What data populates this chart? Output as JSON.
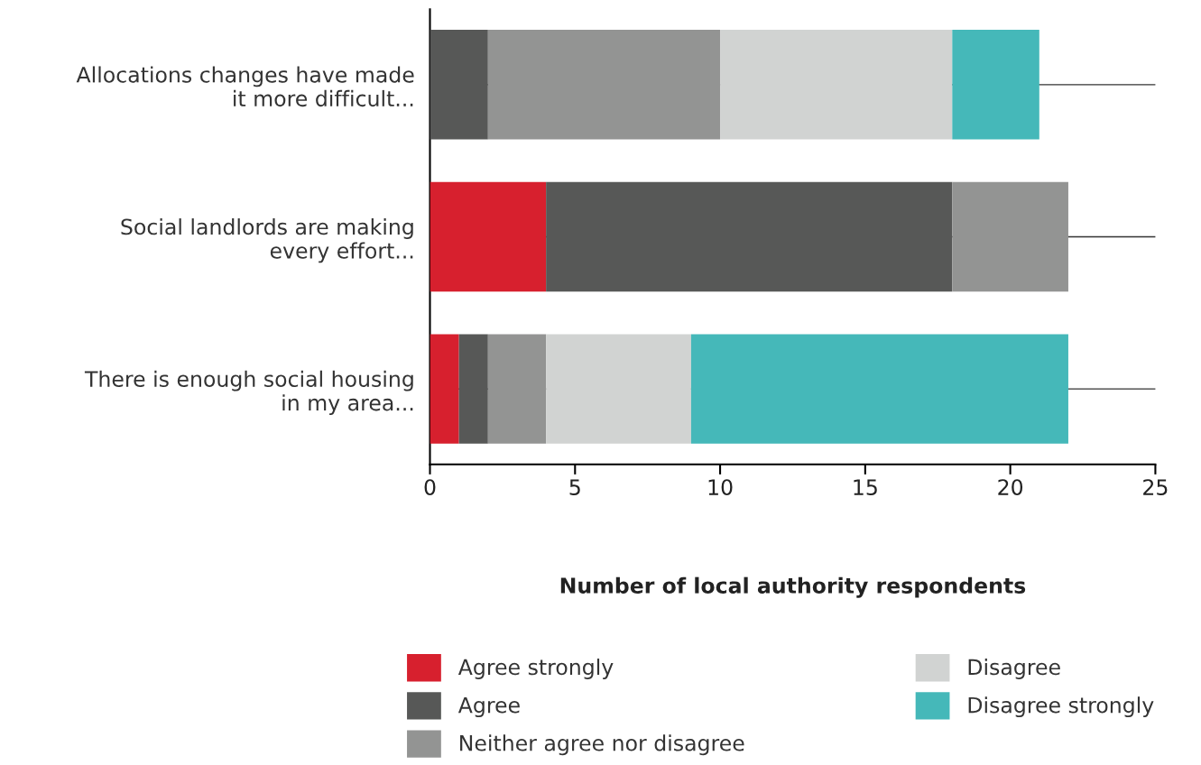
{
  "chart_data": {
    "type": "bar",
    "orientation": "horizontal",
    "stacked": true,
    "categories": [
      "Allocations changes have made\nit more difficult...",
      "Social landlords are making\nevery effort...",
      "There is enough social housing\nin my area..."
    ],
    "series": [
      {
        "name": "Agree strongly",
        "color": "#d7202e",
        "values": [
          0,
          4,
          1
        ]
      },
      {
        "name": "Agree",
        "color": "#575857",
        "values": [
          2,
          14,
          1
        ]
      },
      {
        "name": "Neither agree nor disagree",
        "color": "#939493",
        "values": [
          8,
          4,
          2
        ]
      },
      {
        "name": "Disagree",
        "color": "#d1d3d2",
        "values": [
          8,
          0,
          5
        ]
      },
      {
        "name": "Disagree strongly",
        "color": "#45b8b9",
        "values": [
          3,
          0,
          13
        ]
      }
    ],
    "xlabel": "Number of local authority respondents",
    "xlim": [
      0,
      25
    ],
    "xticks": [
      0,
      5,
      10,
      15,
      20,
      25
    ],
    "grid": "y",
    "legend": "bottom"
  }
}
